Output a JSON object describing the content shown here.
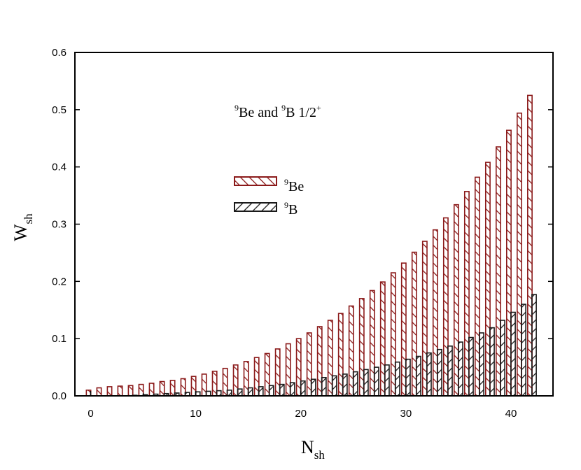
{
  "chart_data": {
    "type": "bar",
    "title": "",
    "annotation": {
      "sup1": "9",
      "part1": "Be and ",
      "sup2": "9",
      "part2": "B 1/2",
      "sup3": "+"
    },
    "xlabel": {
      "main": "N",
      "sub": "sh"
    },
    "ylabel": {
      "main": "W",
      "sub": "sh"
    },
    "xlim": [
      -1.5,
      44
    ],
    "ylim": [
      0,
      0.6
    ],
    "xticks": [
      0,
      10,
      20,
      30,
      40
    ],
    "xtick_labels": [
      "0",
      "10",
      "20",
      "30",
      "40"
    ],
    "yticks": [
      0.0,
      0.1,
      0.2,
      0.3,
      0.4,
      0.5,
      0.6
    ],
    "ytick_labels": [
      "0.0",
      "0.1",
      "0.2",
      "0.3",
      "0.4",
      "0.5",
      "0.6"
    ],
    "grid": false,
    "legend_position": "upper-center",
    "x": [
      0,
      1,
      2,
      3,
      4,
      5,
      6,
      7,
      8,
      9,
      10,
      11,
      12,
      13,
      14,
      15,
      16,
      17,
      18,
      19,
      20,
      21,
      22,
      23,
      24,
      25,
      26,
      27,
      28,
      29,
      30,
      31,
      32,
      33,
      34,
      35,
      36,
      37,
      38,
      39,
      40,
      41,
      42
    ],
    "series": [
      {
        "name": "Be",
        "name_sup": "9",
        "color": "#8b1a1a",
        "hatch": "right-diagonal",
        "values": [
          0.01,
          0.014,
          0.016,
          0.017,
          0.018,
          0.02,
          0.022,
          0.025,
          0.027,
          0.03,
          0.034,
          0.038,
          0.043,
          0.048,
          0.054,
          0.06,
          0.067,
          0.074,
          0.082,
          0.091,
          0.1,
          0.11,
          0.121,
          0.132,
          0.144,
          0.157,
          0.17,
          0.184,
          0.199,
          0.215,
          0.232,
          0.251,
          0.27,
          0.29,
          0.311,
          0.334,
          0.357,
          0.382,
          0.408,
          0.435,
          0.464,
          0.494,
          0.525
        ]
      },
      {
        "name": "B",
        "name_sup": "9",
        "color": "#1a1a1a",
        "hatch": "left-diagonal",
        "values": [
          0.0,
          0.0,
          0.0,
          0.0,
          0.001,
          0.002,
          0.003,
          0.004,
          0.005,
          0.006,
          0.007,
          0.008,
          0.009,
          0.01,
          0.012,
          0.014,
          0.016,
          0.018,
          0.02,
          0.023,
          0.026,
          0.029,
          0.032,
          0.035,
          0.038,
          0.042,
          0.046,
          0.05,
          0.054,
          0.059,
          0.064,
          0.069,
          0.075,
          0.081,
          0.087,
          0.094,
          0.102,
          0.11,
          0.119,
          0.132,
          0.146,
          0.16,
          0.177
        ]
      }
    ]
  }
}
